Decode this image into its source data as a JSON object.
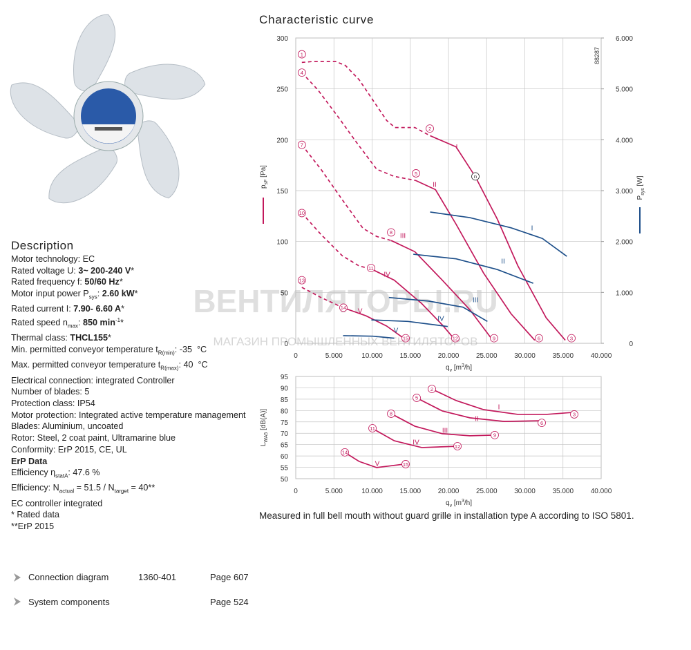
{
  "header": {
    "title": "Characteristic curve"
  },
  "description": {
    "title": "Description",
    "lines": [
      [
        {
          "text": "Motor technology: EC"
        }
      ],
      [
        {
          "text": "Rated voltage U: "
        },
        {
          "text": "3~ 200-240 V",
          "style": "b"
        },
        {
          "text": "*"
        }
      ],
      [
        {
          "text": "Rated frequency f: "
        },
        {
          "text": "50/60 Hz",
          "style": "b"
        },
        {
          "text": "*"
        }
      ],
      [
        {
          "text": "Motor input power P"
        },
        {
          "text": "sys",
          "style": "sub"
        },
        {
          "text": ": "
        },
        {
          "text": "2.60 kW",
          "style": "b"
        },
        {
          "text": "*"
        }
      ],
      [
        {
          "text": "Rated current I: "
        },
        {
          "text": "7.90- 6.60 A",
          "style": "b"
        },
        {
          "text": "*"
        }
      ],
      [
        {
          "text": "Rated speed n"
        },
        {
          "text": "max",
          "style": "sub"
        },
        {
          "text": ": "
        },
        {
          "text": "850 min",
          "style": "b"
        },
        {
          "text": "-1",
          "style": "sup"
        },
        {
          "text": "*"
        }
      ],
      [
        {
          "text": "Thermal class: "
        },
        {
          "text": "THCL155",
          "style": "b"
        },
        {
          "text": "*"
        }
      ],
      [
        {
          "text": "Min. permitted conveyor temperature t"
        },
        {
          "text": "R(min)",
          "style": "sub"
        },
        {
          "text": ": -35  °C"
        }
      ],
      [
        {
          "text": "Max. permitted conveyor temperature t"
        },
        {
          "text": "R(max)",
          "style": "sub"
        },
        {
          "text": ": 40  °C"
        }
      ],
      [
        {
          "text": "Electrical connection: integrated Controller"
        }
      ],
      [
        {
          "text": "Number of blades: 5"
        }
      ],
      [
        {
          "text": "Protection class: IP54"
        }
      ],
      [
        {
          "text": "Motor protection: Integrated active temperature management"
        }
      ],
      [
        {
          "text": "Blades: Aluminium, uncoated"
        }
      ],
      [
        {
          "text": "Rotor: Steel, 2 coat paint, Ultramarine blue"
        }
      ],
      [
        {
          "text": "Conformity: ErP 2015, CE, UL"
        }
      ],
      [
        {
          "text": "ErP Data",
          "style": "b"
        }
      ],
      [
        {
          "text": "Efficiency η"
        },
        {
          "text": "statA",
          "style": "sub"
        },
        {
          "text": ": 47.6 %"
        }
      ],
      [
        {
          "text": "Efficiency: N"
        },
        {
          "text": "actual",
          "style": "sub"
        },
        {
          "text": " = 51.5 / N"
        },
        {
          "text": "target",
          "style": "sub"
        },
        {
          "text": " = 40**"
        }
      ],
      [
        {
          "text": "EC controller integrated"
        }
      ],
      [
        {
          "text": "* Rated data"
        }
      ],
      [
        {
          "text": "**ErP 2015"
        }
      ]
    ]
  },
  "chart_data": [
    {
      "type": "line",
      "code": "88287",
      "x_label": [
        {
          "text": "q"
        },
        {
          "text": "v",
          "style": "sub"
        },
        {
          "text": " [m"
        },
        {
          "text": "3",
          "style": "sup"
        },
        {
          "text": "/h]"
        }
      ],
      "y_label": [
        {
          "text": "p"
        },
        {
          "text": "sF",
          "style": "sub"
        },
        {
          "text": " [Pa]"
        }
      ],
      "y2_label": [
        {
          "text": "P"
        },
        {
          "text": "sys",
          "style": "sub"
        },
        {
          "text": " [W]"
        }
      ],
      "y_color": "#c2185b",
      "y2_color": "#1d4f8a",
      "grid": true,
      "xlim": [
        0,
        40000
      ],
      "ylim": [
        0,
        300
      ],
      "y2lim": [
        0,
        6000
      ],
      "xticks": [
        0,
        {
          "value": 5000,
          "label": "5.000"
        },
        {
          "value": 10000,
          "label": "10.000"
        },
        {
          "value": 15000,
          "label": "15.000"
        },
        {
          "value": 20000,
          "label": "20.000"
        },
        {
          "value": 25000,
          "label": "25.000"
        },
        {
          "value": 30000,
          "label": "30.000"
        },
        {
          "value": 35000,
          "label": "35.000"
        },
        {
          "value": 40000,
          "label": "40.000"
        }
      ],
      "yticks": [
        0,
        50,
        100,
        150,
        200,
        250,
        300
      ],
      "y2ticks": [
        0,
        {
          "value": 1000,
          "label": "1.000"
        },
        {
          "value": 2000,
          "label": "2.000"
        },
        {
          "value": 3000,
          "label": "3.000"
        },
        {
          "value": 4000,
          "label": "4.000"
        },
        {
          "value": 5000,
          "label": "5.000"
        },
        {
          "value": 6000,
          "label": "6.000"
        }
      ],
      "series": [
        {
          "color": "#c2185b",
          "dash": true,
          "x": [
            800,
            2400,
            5200,
            6500,
            8300,
            10100,
            11900,
            13000,
            15600,
            17600
          ],
          "values": [
            276,
            277,
            277,
            273,
            259,
            239,
            219,
            212,
            212,
            204
          ]
        },
        {
          "color": "#c2185b",
          "x": [
            17600,
            21000,
            23500,
            26400,
            29100,
            32800,
            35300
          ],
          "values": [
            204,
            193,
            164,
            122,
            76,
            25,
            3
          ]
        },
        {
          "color": "#c2185b",
          "dash": true,
          "x": [
            800,
            2900,
            5600,
            7900,
            10600,
            12900,
            15700
          ],
          "values": [
            266,
            249,
            222,
            198,
            171,
            164,
            160
          ]
        },
        {
          "color": "#c2185b",
          "x": [
            15700,
            18300,
            21000,
            24600,
            28200,
            31300
          ],
          "values": [
            160,
            151,
            117,
            69,
            29,
            3
          ]
        },
        {
          "color": "#c2185b",
          "dash": true,
          "x": [
            800,
            3300,
            6100,
            8800,
            10600,
            12500
          ],
          "values": [
            195,
            171,
            141,
            113,
            105,
            101
          ]
        },
        {
          "color": "#c2185b",
          "x": [
            12500,
            15600,
            19200,
            22800,
            25800
          ],
          "values": [
            101,
            90,
            62,
            33,
            3
          ]
        },
        {
          "color": "#c2185b",
          "dash": true,
          "x": [
            800,
            3300,
            6100,
            8300,
            9900
          ],
          "values": [
            128,
            107,
            86,
            76,
            73
          ]
        },
        {
          "color": "#c2185b",
          "x": [
            9900,
            12900,
            16500,
            19200,
            20900
          ],
          "values": [
            73,
            62,
            39,
            18,
            3
          ]
        },
        {
          "color": "#c2185b",
          "dash": true,
          "x": [
            800,
            3300,
            6200
          ],
          "values": [
            55,
            45,
            35
          ]
        },
        {
          "color": "#c2185b",
          "x": [
            6200,
            9200,
            11900,
            14500
          ],
          "values": [
            35,
            27,
            17,
            3
          ]
        },
        {
          "color": "#1d4f8a",
          "axis": "y2",
          "x": [
            17600,
            22800,
            28200,
            32300,
            35500
          ],
          "values": [
            2580,
            2470,
            2270,
            2060,
            1710
          ]
        },
        {
          "color": "#1d4f8a",
          "axis": "y2",
          "x": [
            15400,
            21000,
            26400,
            31100
          ],
          "values": [
            1750,
            1660,
            1450,
            1180
          ]
        },
        {
          "color": "#1d4f8a",
          "axis": "y2",
          "x": [
            12200,
            17400,
            21900,
            25100
          ],
          "values": [
            900,
            830,
            710,
            430
          ]
        },
        {
          "color": "#1d4f8a",
          "axis": "y2",
          "x": [
            9900,
            14700,
            19900
          ],
          "values": [
            460,
            430,
            330
          ]
        },
        {
          "color": "#1d4f8a",
          "axis": "y2",
          "x": [
            6200,
            10100,
            12900
          ],
          "values": [
            150,
            140,
            100
          ]
        }
      ],
      "annotations": [
        {
          "text": "1",
          "x": 800,
          "y": 284,
          "circle": true,
          "color": "#c2185b"
        },
        {
          "text": "4",
          "x": 800,
          "y": 266,
          "circle": true,
          "color": "#c2185b"
        },
        {
          "text": "7",
          "x": 800,
          "y": 195,
          "circle": true,
          "color": "#c2185b"
        },
        {
          "text": "10",
          "x": 800,
          "y": 128,
          "circle": true,
          "color": "#c2185b"
        },
        {
          "text": "13",
          "x": 800,
          "y": 62,
          "circle": true,
          "color": "#c2185b"
        },
        {
          "text": "2",
          "x": 17560,
          "y": 211,
          "circle": true,
          "color": "#c2185b"
        },
        {
          "text": "5",
          "x": 15750,
          "y": 167,
          "circle": true,
          "color": "#c2185b"
        },
        {
          "text": "8",
          "x": 12490,
          "y": 109,
          "circle": true,
          "color": "#c2185b"
        },
        {
          "text": "11",
          "x": 9860,
          "y": 74,
          "circle": true,
          "color": "#c2185b"
        },
        {
          "text": "14",
          "x": 6240,
          "y": 35,
          "circle": true,
          "color": "#c2185b"
        },
        {
          "text": "n",
          "x": 23530,
          "y": 164,
          "circle": true,
          "color": "#222"
        },
        {
          "text": "3",
          "x": 36110,
          "y": 5,
          "circle": true,
          "color": "#c2185b"
        },
        {
          "text": "6",
          "x": 31850,
          "y": 5,
          "circle": true,
          "color": "#c2185b"
        },
        {
          "text": "9",
          "x": 25970,
          "y": 5,
          "circle": true,
          "color": "#c2185b"
        },
        {
          "text": "12",
          "x": 20900,
          "y": 5,
          "circle": true,
          "color": "#c2185b"
        },
        {
          "text": "15",
          "x": 14390,
          "y": 5,
          "circle": true,
          "color": "#c2185b"
        },
        {
          "text": "I",
          "x": 21090,
          "y": 193,
          "color": "#c2185b"
        },
        {
          "text": "II",
          "x": 18190,
          "y": 156,
          "color": "#c2185b"
        },
        {
          "text": "III",
          "x": 14030,
          "y": 106,
          "color": "#c2185b"
        },
        {
          "text": "IV",
          "x": 11950,
          "y": 68,
          "color": "#c2185b"
        },
        {
          "text": "V",
          "x": 8420,
          "y": 32,
          "color": "#c2185b"
        },
        {
          "text": "I",
          "x": 30950,
          "y": 2267,
          "axis": "y2",
          "color": "#1d4f8a"
        },
        {
          "text": "II",
          "x": 27150,
          "y": 1615,
          "axis": "y2",
          "color": "#1d4f8a"
        },
        {
          "text": "III",
          "x": 23530,
          "y": 855,
          "axis": "y2",
          "color": "#1d4f8a"
        },
        {
          "text": "IV",
          "x": 19000,
          "y": 489,
          "axis": "y2",
          "color": "#1d4f8a"
        },
        {
          "text": "V",
          "x": 13120,
          "y": 258,
          "axis": "y2",
          "color": "#1d4f8a"
        }
      ]
    },
    {
      "type": "line",
      "x_label": [
        {
          "text": "q"
        },
        {
          "text": "v",
          "style": "sub"
        },
        {
          "text": " [m"
        },
        {
          "text": "3",
          "style": "sup"
        },
        {
          "text": "/h]"
        }
      ],
      "y_label": [
        {
          "text": "L"
        },
        {
          "text": "WA5",
          "style": "sub"
        },
        {
          "text": " [dB(A)]"
        }
      ],
      "grid": true,
      "xlim": [
        0,
        40000
      ],
      "ylim": [
        50,
        95
      ],
      "xticks": [
        0,
        {
          "value": 5000,
          "label": "5.000"
        },
        {
          "value": 10000,
          "label": "10.000"
        },
        {
          "value": 15000,
          "label": "15.000"
        },
        {
          "value": 20000,
          "label": "20.000"
        },
        {
          "value": 25000,
          "label": "25.000"
        },
        {
          "value": 30000,
          "label": "30.000"
        },
        {
          "value": 35000,
          "label": "35.000"
        },
        {
          "value": 40000,
          "label": "40.000"
        }
      ],
      "yticks": [
        50,
        55,
        60,
        65,
        70,
        75,
        80,
        85,
        90,
        95
      ],
      "series": [
        {
          "color": "#c2185b",
          "x": [
            17800,
            21000,
            24600,
            29100,
            32800,
            36400
          ],
          "values": [
            89.5,
            84.4,
            80.4,
            78.3,
            78.3,
            79.2
          ]
        },
        {
          "color": "#c2185b",
          "x": [
            15800,
            19200,
            22800,
            27300,
            32100
          ],
          "values": [
            85.6,
            79.8,
            76.8,
            75.2,
            75.5
          ]
        },
        {
          "color": "#c2185b",
          "x": [
            12500,
            15600,
            19200,
            22800,
            26000
          ],
          "values": [
            78.6,
            73.1,
            69.8,
            68.9,
            69.2
          ]
        },
        {
          "color": "#c2185b",
          "x": [
            10000,
            12900,
            16500,
            21200
          ],
          "values": [
            72.2,
            66.7,
            63.7,
            64.3
          ]
        },
        {
          "color": "#c2185b",
          "x": [
            6400,
            8300,
            10600,
            14200
          ],
          "values": [
            61.6,
            57.6,
            54.9,
            56.4
          ]
        }
      ],
      "annotations": [
        {
          "text": "2",
          "x": 17830,
          "y": 89.5,
          "circle": true,
          "color": "#c2185b"
        },
        {
          "text": "3",
          "x": 36470,
          "y": 78.3,
          "circle": true,
          "color": "#c2185b"
        },
        {
          "text": "5",
          "x": 15840,
          "y": 85.6,
          "circle": true,
          "color": "#c2185b"
        },
        {
          "text": "6",
          "x": 32220,
          "y": 74.6,
          "circle": true,
          "color": "#c2185b"
        },
        {
          "text": "8",
          "x": 12490,
          "y": 78.6,
          "circle": true,
          "color": "#c2185b"
        },
        {
          "text": "9",
          "x": 26060,
          "y": 69.2,
          "circle": true,
          "color": "#c2185b"
        },
        {
          "text": "11",
          "x": 10050,
          "y": 72.2,
          "circle": true,
          "color": "#c2185b"
        },
        {
          "text": "12",
          "x": 21180,
          "y": 64.3,
          "circle": true,
          "color": "#c2185b"
        },
        {
          "text": "14",
          "x": 6430,
          "y": 61.6,
          "circle": true,
          "color": "#c2185b"
        },
        {
          "text": "15",
          "x": 14390,
          "y": 56.4,
          "circle": true,
          "color": "#c2185b"
        },
        {
          "text": "I",
          "x": 26610,
          "y": 81.6,
          "color": "#c2185b"
        },
        {
          "text": "II",
          "x": 23710,
          "y": 76.5,
          "color": "#c2185b"
        },
        {
          "text": "III",
          "x": 19550,
          "y": 71.3,
          "color": "#c2185b"
        },
        {
          "text": "IV",
          "x": 15750,
          "y": 66.1,
          "color": "#c2185b"
        },
        {
          "text": "V",
          "x": 10680,
          "y": 56.7,
          "color": "#c2185b"
        }
      ]
    }
  ],
  "note": "Measured in full bell mouth without guard grille in installation type A according to ISO 5801.",
  "watermark": {
    "title": "ВЕНТИЛЯТОРЫ.RU",
    "subtitle": "МАГАЗИН ПРОМЫШЛЕННЫХ ВЕНТИЛЯТОРОВ"
  },
  "links": [
    {
      "name": "Connection diagram",
      "code": "1360-401",
      "page": "Page 607"
    },
    {
      "name": "System components",
      "page": "Page 524"
    }
  ]
}
